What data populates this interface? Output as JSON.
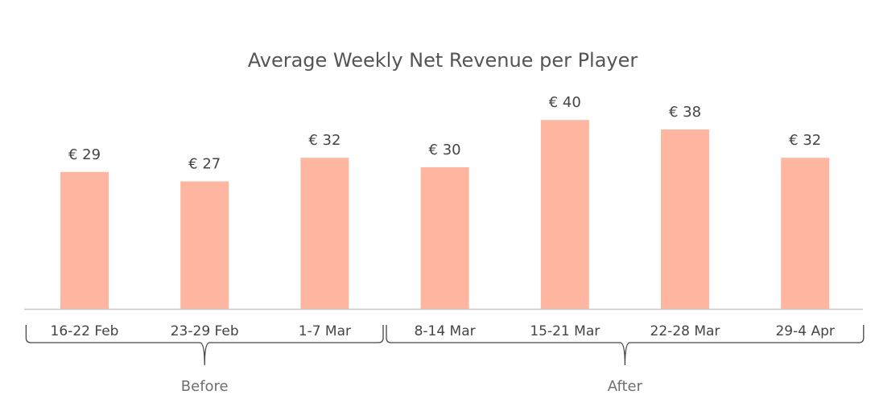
{
  "chart_data": {
    "type": "bar",
    "title": "Average Weekly Net Revenue per Player",
    "categories": [
      "16-22 Feb",
      "23-29 Feb",
      "1-7 Mar",
      "8-14 Mar",
      "15-21 Mar",
      "22-28 Mar",
      "29-4 Apr"
    ],
    "values": [
      29,
      27,
      32,
      30,
      40,
      38,
      32
    ],
    "value_labels": [
      "€ 29",
      "€ 27",
      "€ 32",
      "€ 30",
      "€ 40",
      "€ 38",
      "€ 32"
    ],
    "ylim": [
      0,
      40
    ],
    "grid": false,
    "bar_color": "#ffb6a0",
    "groups": [
      {
        "label": "Before",
        "categories": [
          "16-22 Feb",
          "23-29 Feb",
          "1-7 Mar"
        ]
      },
      {
        "label": "After",
        "categories": [
          "8-14 Mar",
          "15-21 Mar",
          "22-28 Mar",
          "29-4 Apr"
        ]
      }
    ]
  }
}
